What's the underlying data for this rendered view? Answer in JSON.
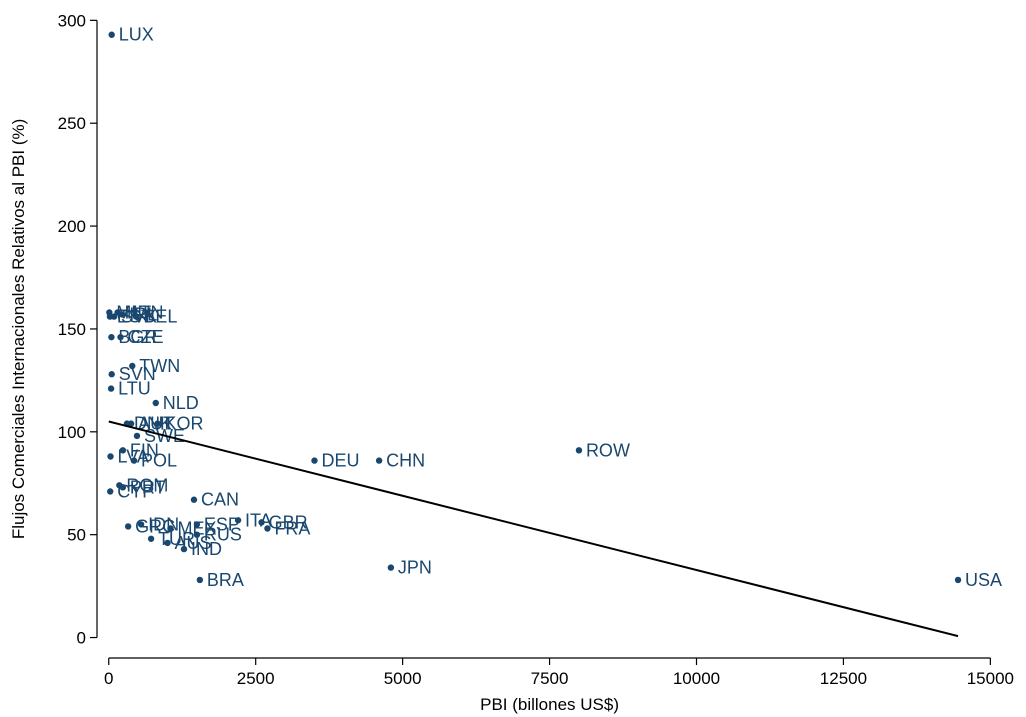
{
  "chart_data": {
    "type": "scatter",
    "xlabel": "PBI (billones US$)",
    "ylabel": "Flujos Comerciales Internacionales Relativos al PBI (%)",
    "xlim": [
      -200,
      15300
    ],
    "ylim": [
      -8,
      306
    ],
    "xticks": [
      0,
      2500,
      5000,
      7500,
      10000,
      12500,
      15000
    ],
    "yticks": [
      0,
      50,
      100,
      150,
      200,
      250,
      300
    ],
    "grid": false,
    "legend": "none",
    "colors": {
      "points": "#1a476f",
      "fit": "#000000"
    },
    "points": [
      {
        "label": "LUX",
        "x": 50,
        "y": 293
      },
      {
        "label": "MLT",
        "x": 10,
        "y": 158
      },
      {
        "label": "HUN",
        "x": 150,
        "y": 158
      },
      {
        "label": "BEL",
        "x": 470,
        "y": 156
      },
      {
        "label": "IRL",
        "x": 230,
        "y": 157
      },
      {
        "label": "SVK",
        "x": 90,
        "y": 156
      },
      {
        "label": "EST",
        "x": 20,
        "y": 156
      },
      {
        "label": "BGR",
        "x": 45,
        "y": 146
      },
      {
        "label": "CZE",
        "x": 200,
        "y": 146
      },
      {
        "label": "TWN",
        "x": 400,
        "y": 132
      },
      {
        "label": "SVN",
        "x": 50,
        "y": 128
      },
      {
        "label": "LTU",
        "x": 40,
        "y": 121
      },
      {
        "label": "AUT",
        "x": 380,
        "y": 104
      },
      {
        "label": "KOR",
        "x": 830,
        "y": 104
      },
      {
        "label": "NLD",
        "x": 800,
        "y": 114
      },
      {
        "label": "DNK",
        "x": 310,
        "y": 104
      },
      {
        "label": "SWE",
        "x": 480,
        "y": 98
      },
      {
        "label": "FIN",
        "x": 240,
        "y": 91
      },
      {
        "label": "LVA",
        "x": 30,
        "y": 88
      },
      {
        "label": "POL",
        "x": 430,
        "y": 86
      },
      {
        "label": "DEU",
        "x": 3500,
        "y": 86
      },
      {
        "label": "CHN",
        "x": 4600,
        "y": 86
      },
      {
        "label": "ROW",
        "x": 8000,
        "y": 91
      },
      {
        "label": "ROM",
        "x": 180,
        "y": 74
      },
      {
        "label": "PRT",
        "x": 240,
        "y": 73
      },
      {
        "label": "CYP",
        "x": 25,
        "y": 71
      },
      {
        "label": "CAN",
        "x": 1450,
        "y": 67
      },
      {
        "label": "IDN",
        "x": 550,
        "y": 55
      },
      {
        "label": "GRC",
        "x": 330,
        "y": 54
      },
      {
        "label": "ESP",
        "x": 1500,
        "y": 55
      },
      {
        "label": "ITA",
        "x": 2200,
        "y": 57
      },
      {
        "label": "GBR",
        "x": 2600,
        "y": 56
      },
      {
        "label": "FRA",
        "x": 2700,
        "y": 53
      },
      {
        "label": "MEX",
        "x": 1050,
        "y": 53
      },
      {
        "label": "TUR",
        "x": 720,
        "y": 48
      },
      {
        "label": "AUS",
        "x": 1000,
        "y": 46
      },
      {
        "label": "RUS",
        "x": 1500,
        "y": 50
      },
      {
        "label": "IND",
        "x": 1280,
        "y": 43
      },
      {
        "label": "BRA",
        "x": 1550,
        "y": 28
      },
      {
        "label": "JPN",
        "x": 4800,
        "y": 34
      },
      {
        "label": "USA",
        "x": 14450,
        "y": 28
      }
    ],
    "fit_line": {
      "x": [
        0,
        14450
      ],
      "y": [
        105,
        0.7
      ]
    }
  }
}
